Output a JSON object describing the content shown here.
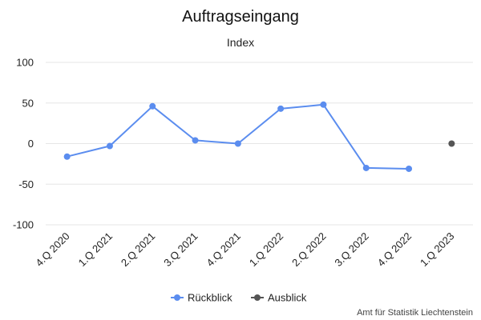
{
  "chart_data": {
    "type": "line",
    "title": "Auftragseingang",
    "subtitle": "Index",
    "xlabel": "",
    "ylabel": "",
    "categories": [
      "4.Q 2020",
      "1.Q 2021",
      "2.Q 2021",
      "3.Q 2021",
      "4.Q 2021",
      "1.Q 2022",
      "2.Q 2022",
      "3.Q 2022",
      "4.Q 2022",
      "1.Q 2023"
    ],
    "ylim": [
      -100,
      100
    ],
    "yticks": [
      100,
      50,
      0,
      -50,
      -100
    ],
    "grid": true,
    "legend_position": "bottom-center",
    "series": [
      {
        "name": "Rückblick",
        "color": "#5b8def",
        "values": [
          -16,
          -3,
          46,
          4,
          0,
          43,
          48,
          -30,
          -31,
          null
        ]
      },
      {
        "name": "Ausblick",
        "color": "#555555",
        "values": [
          null,
          null,
          null,
          null,
          null,
          null,
          null,
          null,
          null,
          0
        ]
      }
    ],
    "credits": "Amt für Statistik Liechtenstein"
  }
}
